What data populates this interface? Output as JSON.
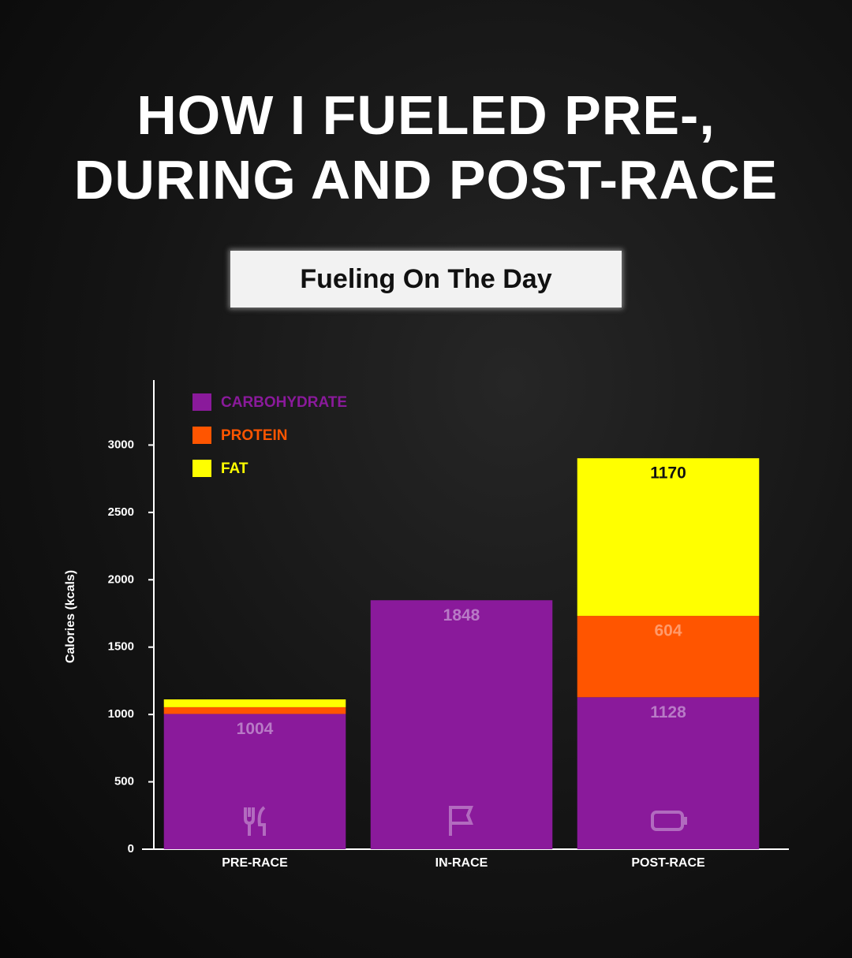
{
  "chart_data": {
    "type": "stacked_bar",
    "title": "HOW I FUELED PRE-, DURING AND POST-RACE",
    "subtitle": "Fueling On The Day",
    "y_label": "Calories (kcals)",
    "categories": [
      "PRE-RACE",
      "IN-RACE",
      "POST-RACE"
    ],
    "series": [
      {
        "name": "CARBOHYDRATE",
        "color": "#8a1a9b",
        "label_color": "#b87ac6",
        "values": [
          1004,
          1848,
          1128
        ]
      },
      {
        "name": "PROTEIN",
        "color": "#ff5500",
        "label_color": "#ff9a6a",
        "values": [
          50,
          0,
          604
        ]
      },
      {
        "name": "FAT",
        "color": "#ffff00",
        "label_color": "#111111",
        "values": [
          58,
          0,
          1170
        ]
      }
    ],
    "ylim": [
      0,
      3500
    ],
    "yticks": [
      0,
      500,
      1000,
      1500,
      2000,
      2500,
      3000
    ],
    "legend": "top-left",
    "grid": false
  }
}
